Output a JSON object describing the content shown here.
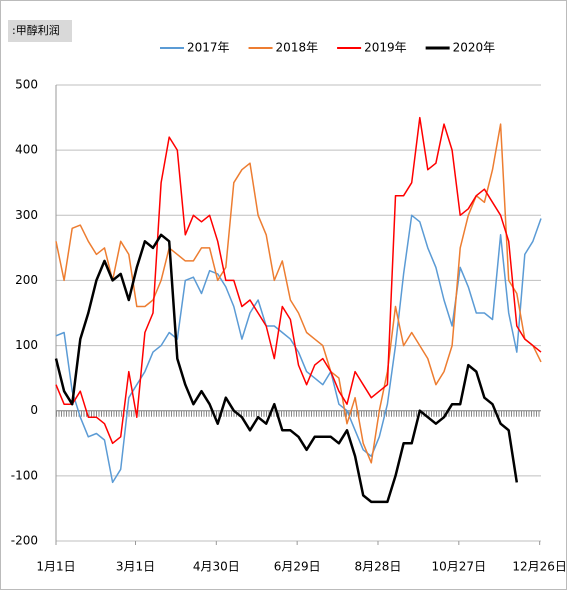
{
  "chart_data": {
    "type": "line",
    "title": ":甲醇利润",
    "x": [
      0,
      6,
      12,
      18,
      24,
      30,
      36,
      42,
      48,
      54,
      60,
      66,
      72,
      78,
      84,
      90,
      96,
      102,
      108,
      114,
      120,
      126,
      132,
      138,
      144,
      150,
      156,
      162,
      168,
      174,
      180,
      186,
      192,
      198,
      204,
      210,
      216,
      222,
      228,
      234,
      240,
      246,
      252,
      258,
      264,
      270,
      276,
      282,
      288,
      294,
      300,
      306,
      312,
      318,
      324,
      330,
      336,
      342,
      348,
      354,
      360
    ],
    "xlim": [
      0,
      360
    ],
    "xticks": [
      {
        "value": 0,
        "label": "1月1日"
      },
      {
        "value": 59,
        "label": "3月1日"
      },
      {
        "value": 119,
        "label": "4月30日"
      },
      {
        "value": 179,
        "label": "6月29日"
      },
      {
        "value": 239,
        "label": "8月28日"
      },
      {
        "value": 299,
        "label": "10月27日"
      },
      {
        "value": 359,
        "label": "12月26日"
      }
    ],
    "ylim": [
      -200,
      500
    ],
    "yticks": [
      500,
      400,
      300,
      200,
      100,
      0,
      -100,
      -200
    ],
    "grid": true,
    "legend": "top",
    "series": [
      {
        "name": "2017年",
        "color": "#5b9bd5",
        "width": 1.5,
        "values": [
          115,
          120,
          30,
          -10,
          -40,
          -35,
          -45,
          -110,
          -90,
          20,
          40,
          60,
          90,
          100,
          120,
          110,
          200,
          205,
          180,
          215,
          210,
          190,
          160,
          110,
          150,
          170,
          130,
          130,
          120,
          110,
          90,
          60,
          50,
          40,
          60,
          10,
          0,
          -30,
          -60,
          -70,
          -40,
          10,
          100,
          210,
          300,
          290,
          250,
          220,
          170,
          130,
          220,
          190,
          150,
          150,
          140,
          270,
          150,
          90,
          240,
          260,
          295
        ]
      },
      {
        "name": "2018年",
        "color": "#ed7d31",
        "width": 1.5,
        "values": [
          260,
          200,
          280,
          285,
          260,
          240,
          250,
          200,
          260,
          240,
          160,
          160,
          170,
          200,
          250,
          240,
          230,
          230,
          250,
          250,
          200,
          220,
          350,
          370,
          380,
          300,
          270,
          200,
          230,
          170,
          150,
          120,
          110,
          100,
          60,
          50,
          -20,
          20,
          -50,
          -80,
          0,
          60,
          160,
          100,
          120,
          100,
          80,
          40,
          60,
          100,
          250,
          300,
          330,
          320,
          370,
          440,
          200,
          180,
          110,
          100,
          75
        ]
      },
      {
        "name": "2019年",
        "color": "#ff0000",
        "width": 1.5,
        "values": [
          40,
          10,
          10,
          30,
          -10,
          -10,
          -20,
          -50,
          -40,
          60,
          -10,
          120,
          150,
          350,
          420,
          400,
          270,
          300,
          290,
          300,
          260,
          200,
          200,
          160,
          170,
          150,
          130,
          80,
          160,
          140,
          70,
          40,
          70,
          80,
          60,
          30,
          10,
          60,
          40,
          20,
          30,
          40,
          330,
          330,
          350,
          450,
          370,
          380,
          440,
          400,
          300,
          310,
          330,
          340,
          320,
          300,
          260,
          130,
          110,
          100,
          90
        ]
      },
      {
        "name": "2020年",
        "color": "#000000",
        "width": 2.5,
        "values": [
          80,
          30,
          10,
          110,
          150,
          200,
          230,
          200,
          210,
          170,
          220,
          260,
          250,
          270,
          260,
          80,
          40,
          10,
          30,
          10,
          -20,
          20,
          0,
          -10,
          -30,
          -10,
          -20,
          10,
          -30,
          -30,
          -40,
          -60,
          -40,
          -40,
          -40,
          -50,
          -30,
          -70,
          -130,
          -140,
          -140,
          -140,
          -100,
          -50,
          -50,
          0,
          -10,
          -20,
          -10,
          10,
          10,
          70,
          60,
          20,
          10,
          -20,
          -30,
          -110,
          null,
          null,
          null
        ]
      }
    ]
  }
}
